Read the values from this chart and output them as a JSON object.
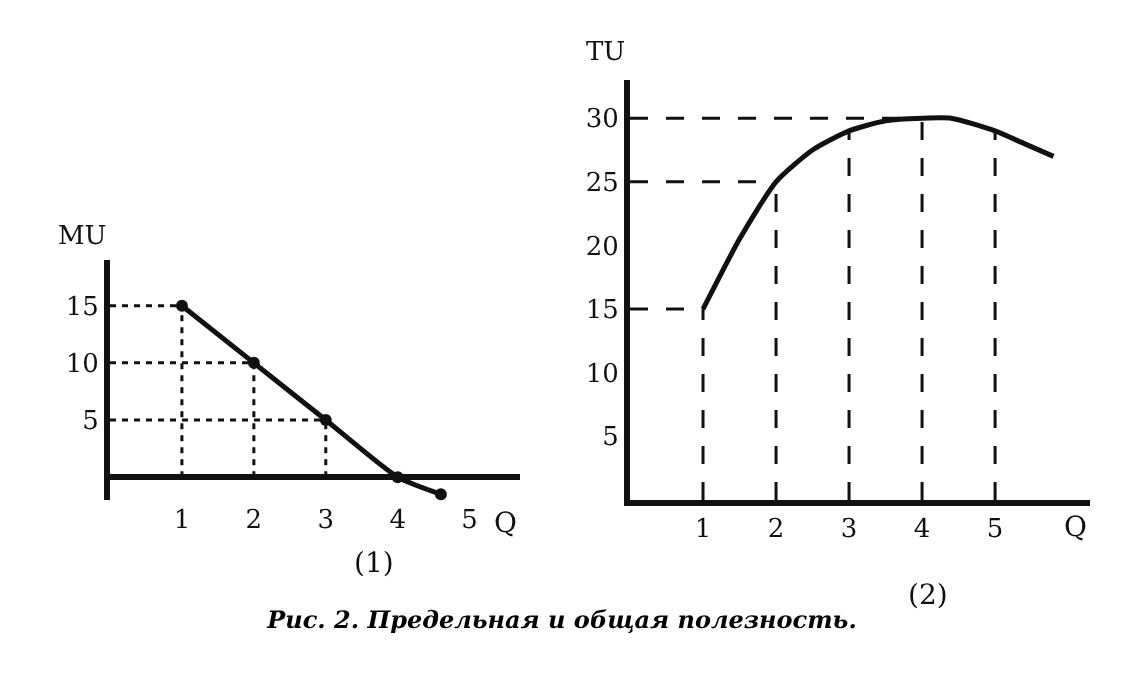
{
  "chart_data": [
    {
      "type": "line",
      "xlabel": "Q",
      "ylabel": "MU",
      "x": [
        1,
        2,
        3,
        4,
        4.6
      ],
      "series": [
        {
          "color": "#111111",
          "values": [
            15,
            10,
            5,
            0,
            -1.5
          ]
        }
      ],
      "xlim": [
        0,
        5.7
      ],
      "ylim": [
        -2,
        19
      ],
      "xticks": [
        1,
        2,
        3,
        4,
        5
      ],
      "yticks": [
        5,
        10,
        15
      ],
      "marker": "circle",
      "line_style": "solid",
      "ref_lines": [
        {
          "axis": "x",
          "value": 1,
          "line_style": "dotted"
        },
        {
          "axis": "x",
          "value": 2,
          "line_style": "dotted"
        },
        {
          "axis": "x",
          "value": 3,
          "line_style": "dotted"
        },
        {
          "axis": "y",
          "value": 5,
          "line_style": "dotted"
        },
        {
          "axis": "y",
          "value": 10,
          "line_style": "dotted"
        },
        {
          "axis": "y",
          "value": 15,
          "line_style": "dotted"
        }
      ],
      "annotations": [
        "(1)",
        "Рис. 2. Предельная и общая полезность."
      ]
    },
    {
      "type": "line",
      "xlabel": "Q",
      "ylabel": "TU",
      "x": [
        1,
        1.5,
        2,
        2.5,
        3,
        3.5,
        4,
        4.4,
        5,
        5.4,
        5.8
      ],
      "series": [
        {
          "color": "#111111",
          "values": [
            15,
            20.5,
            25,
            27.5,
            29,
            29.8,
            30,
            30,
            29,
            28,
            27
          ]
        }
      ],
      "xlim": [
        0,
        6.3
      ],
      "ylim": [
        0,
        33
      ],
      "xticks": [
        1,
        2,
        3,
        4,
        5
      ],
      "yticks": [
        5,
        10,
        15,
        20,
        25,
        30
      ],
      "marker": "none",
      "line_style": "solid",
      "ref_lines": [
        {
          "axis": "x",
          "value": 1,
          "line_style": "dashed"
        },
        {
          "axis": "x",
          "value": 2,
          "line_style": "dashed"
        },
        {
          "axis": "x",
          "value": 3,
          "line_style": "dashed"
        },
        {
          "axis": "x",
          "value": 4,
          "line_style": "dashed"
        },
        {
          "axis": "x",
          "value": 5,
          "line_style": "dashed"
        },
        {
          "axis": "y",
          "value": 15,
          "line_style": "dashed"
        },
        {
          "axis": "y",
          "value": 25,
          "line_style": "dashed"
        },
        {
          "axis": "y",
          "value": 30,
          "line_style": "dashed"
        }
      ],
      "annotations": [
        "(2)"
      ]
    }
  ]
}
